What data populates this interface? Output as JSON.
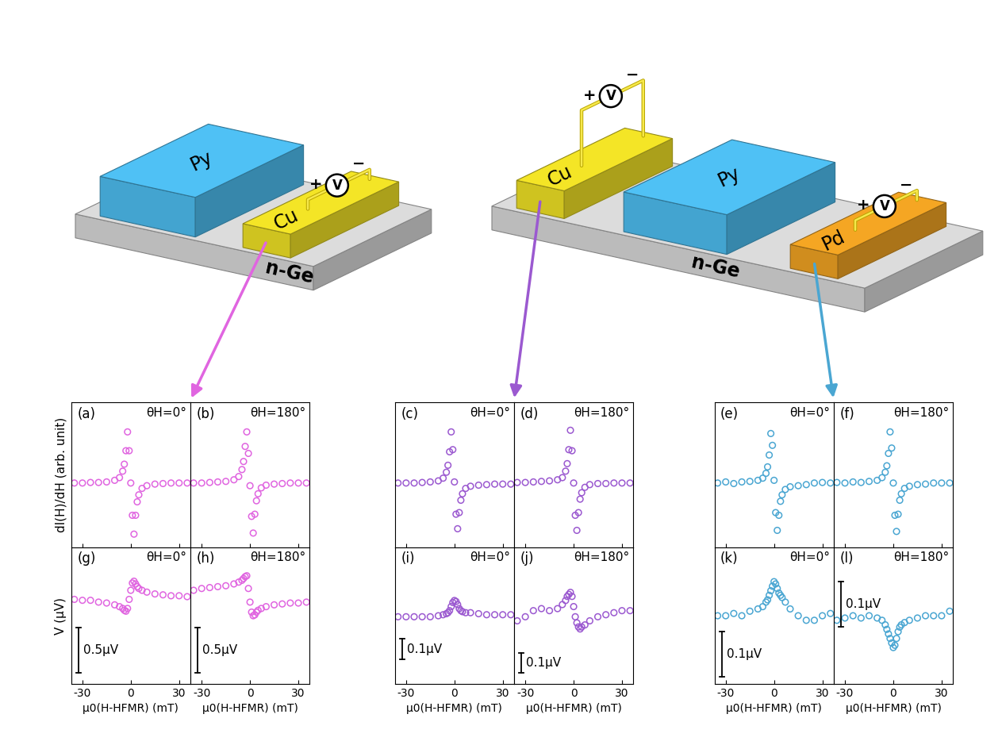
{
  "diagram": {
    "devices": [
      {
        "substrate": {
          "name": "n-Ge",
          "color": "#dcdcdc"
        },
        "layers": [
          {
            "name": "Py",
            "color": "#4fc1f5"
          },
          {
            "name": "Cu",
            "color": "#f4e526",
            "voltmeter": {
              "symbol": "V",
              "plus": "+",
              "minus": "−"
            }
          }
        ]
      },
      {
        "substrate": {
          "name": "n-Ge",
          "color": "#dcdcdc"
        },
        "layers": [
          {
            "name": "Cu",
            "color": "#f4e526",
            "voltmeter": {
              "symbol": "V",
              "plus": "+",
              "minus": "−"
            }
          },
          {
            "name": "Py",
            "color": "#4fc1f5"
          },
          {
            "name": "Pd",
            "color": "#f5a623",
            "voltmeter": {
              "symbol": "V",
              "plus": "+",
              "minus": "−"
            }
          }
        ]
      }
    ]
  },
  "chart_data": [
    {
      "type": "scatter",
      "label": "(a)",
      "annotation": "θH=0°",
      "color": "#e065e0",
      "marker": "o",
      "ylabel": "dI(H)/dH (arb. unit)",
      "tick_labels": false,
      "x": [
        -35,
        -30,
        -25,
        -20,
        -15,
        -10,
        -7,
        -5,
        -4,
        -3,
        -2,
        -1,
        0,
        1,
        2,
        3,
        4,
        5,
        7,
        10,
        15,
        20,
        25,
        30,
        35
      ],
      "values": [
        0,
        0,
        0.01,
        0.01,
        0.02,
        0.05,
        0.1,
        0.22,
        0.35,
        0.6,
        0.95,
        0.6,
        0.0,
        -0.6,
        -0.95,
        -0.6,
        -0.35,
        -0.22,
        -0.1,
        -0.05,
        -0.02,
        -0.01,
        0,
        0,
        0
      ],
      "xlim": [
        -37,
        37
      ],
      "xticks": [
        -30,
        0,
        30
      ],
      "ylim": [
        -1.2,
        1.5
      ]
    },
    {
      "type": "scatter",
      "label": "(b)",
      "annotation": "θH=180°",
      "color": "#e065e0",
      "marker": "o",
      "tick_labels": false,
      "x": [
        -35,
        -30,
        -25,
        -20,
        -15,
        -10,
        -7,
        -5,
        -4,
        -3,
        -2,
        -1,
        0,
        1,
        2,
        3,
        4,
        5,
        7,
        10,
        15,
        20,
        25,
        30,
        35
      ],
      "values": [
        0,
        0,
        0.01,
        0.02,
        0.03,
        0.06,
        0.12,
        0.25,
        0.4,
        0.68,
        0.95,
        0.55,
        -0.05,
        -0.62,
        -0.93,
        -0.58,
        -0.33,
        -0.2,
        -0.09,
        -0.04,
        -0.02,
        -0.01,
        0,
        0,
        0
      ],
      "xlim": [
        -37,
        37
      ],
      "xticks": [
        -30,
        0,
        30
      ],
      "ylim": [
        -1.2,
        1.5
      ]
    },
    {
      "type": "scatter",
      "label": "(c)",
      "annotation": "θH=0°",
      "color": "#9b59d0",
      "marker": "o",
      "tick_labels": false,
      "x": [
        -35,
        -30,
        -25,
        -20,
        -15,
        -10,
        -7,
        -5,
        -4,
        -3,
        -2,
        -1,
        0,
        1,
        2,
        3,
        4,
        5,
        7,
        10,
        15,
        20,
        25,
        30,
        35
      ],
      "values": [
        0,
        0,
        0,
        0.01,
        0.02,
        0.04,
        0.09,
        0.2,
        0.33,
        0.58,
        0.95,
        0.62,
        0.02,
        -0.58,
        -0.85,
        -0.55,
        -0.32,
        -0.2,
        -0.1,
        -0.06,
        -0.04,
        -0.03,
        -0.02,
        -0.02,
        -0.02
      ],
      "xlim": [
        -37,
        37
      ],
      "xticks": [
        -30,
        0,
        30
      ],
      "ylim": [
        -1.2,
        1.5
      ]
    },
    {
      "type": "scatter",
      "label": "(d)",
      "annotation": "θH=180°",
      "color": "#9b59d0",
      "marker": "o",
      "tick_labels": false,
      "x": [
        -35,
        -30,
        -25,
        -20,
        -15,
        -10,
        -7,
        -5,
        -4,
        -3,
        -2,
        -1,
        0,
        1,
        2,
        3,
        4,
        5,
        7,
        10,
        15,
        20,
        25,
        30,
        35
      ],
      "values": [
        0.01,
        0.01,
        0.02,
        0.03,
        0.04,
        0.06,
        0.1,
        0.22,
        0.36,
        0.62,
        0.98,
        0.6,
        0.0,
        -0.6,
        -0.88,
        -0.55,
        -0.3,
        -0.18,
        -0.08,
        -0.03,
        -0.01,
        -0.01,
        0,
        0,
        0
      ],
      "xlim": [
        -37,
        37
      ],
      "xticks": [
        -30,
        0,
        30
      ],
      "ylim": [
        -1.2,
        1.5
      ]
    },
    {
      "type": "scatter",
      "label": "(e)",
      "annotation": "θH=0°",
      "color": "#4aa6d2",
      "marker": "o",
      "tick_labels": false,
      "x": [
        -35,
        -30,
        -25,
        -20,
        -15,
        -10,
        -7,
        -5,
        -4,
        -3,
        -2,
        -1,
        0,
        1,
        2,
        3,
        4,
        5,
        7,
        10,
        15,
        20,
        25,
        30,
        35
      ],
      "values": [
        0,
        0.02,
        -0.01,
        0.02,
        0.03,
        0.05,
        0.09,
        0.18,
        0.3,
        0.52,
        0.92,
        0.7,
        0.05,
        -0.55,
        -0.88,
        -0.6,
        -0.34,
        -0.22,
        -0.12,
        -0.07,
        -0.05,
        -0.03,
        0,
        0.01,
        0
      ],
      "xlim": [
        -37,
        37
      ],
      "xticks": [
        -30,
        0,
        30
      ],
      "ylim": [
        -1.2,
        1.5
      ]
    },
    {
      "type": "scatter",
      "label": "(f)",
      "annotation": "θH=180°",
      "color": "#4aa6d2",
      "marker": "o",
      "tick_labels": false,
      "x": [
        -35,
        -30,
        -25,
        -20,
        -15,
        -10,
        -7,
        -5,
        -4,
        -3,
        -2,
        -1,
        0,
        1,
        2,
        3,
        4,
        5,
        7,
        10,
        15,
        20,
        25,
        30,
        35
      ],
      "values": [
        0.01,
        0,
        0.02,
        0.01,
        0.03,
        0.05,
        0.1,
        0.2,
        0.32,
        0.55,
        0.95,
        0.65,
        0.0,
        -0.6,
        -0.9,
        -0.58,
        -0.32,
        -0.2,
        -0.1,
        -0.06,
        -0.03,
        -0.02,
        0,
        0,
        0
      ],
      "xlim": [
        -37,
        37
      ],
      "xticks": [
        -30,
        0,
        30
      ],
      "ylim": [
        -1.2,
        1.5
      ]
    },
    {
      "type": "scatter",
      "label": "(g)",
      "annotation": "θH=0°",
      "color": "#e065e0",
      "marker": "o",
      "ylabel": "V (μV)",
      "xlabel": "μ0(H-HFMR) (mT)",
      "tick_labels": "x",
      "scale_bar": {
        "value": 0.5,
        "label": "0.5μV"
      },
      "x": [
        -35,
        -30,
        -25,
        -20,
        -15,
        -10,
        -7,
        -5,
        -4,
        -3,
        -2,
        -1,
        0,
        1,
        2,
        3,
        4,
        5,
        7,
        10,
        15,
        20,
        25,
        30,
        35
      ],
      "values": [
        -0.02,
        -0.03,
        -0.03,
        -0.05,
        -0.06,
        -0.08,
        -0.1,
        -0.12,
        -0.14,
        -0.15,
        -0.12,
        -0.02,
        0.08,
        0.16,
        0.18,
        0.15,
        0.12,
        0.1,
        0.08,
        0.06,
        0.04,
        0.03,
        0.02,
        0.02,
        0.01
      ],
      "xlim": [
        -37,
        37
      ],
      "xticks": [
        -30,
        0,
        30
      ],
      "ylim": [
        -0.95,
        0.55
      ]
    },
    {
      "type": "scatter",
      "label": "(h)",
      "annotation": "θH=180°",
      "color": "#e065e0",
      "marker": "o",
      "xlabel": "μ0(H-HFMR) (mT)",
      "tick_labels": "x",
      "scale_bar": {
        "value": 0.5,
        "label": "0.5μV"
      },
      "x": [
        -35,
        -30,
        -25,
        -20,
        -15,
        -10,
        -7,
        -5,
        -4,
        -3,
        -2,
        -1,
        0,
        1,
        2,
        3,
        4,
        5,
        7,
        10,
        15,
        20,
        25,
        30,
        35
      ],
      "values": [
        0.08,
        0.1,
        0.11,
        0.12,
        0.13,
        0.15,
        0.17,
        0.19,
        0.21,
        0.23,
        0.24,
        0.1,
        -0.05,
        -0.16,
        -0.2,
        -0.19,
        -0.16,
        -0.14,
        -0.12,
        -0.1,
        -0.08,
        -0.07,
        -0.06,
        -0.06,
        -0.05
      ],
      "xlim": [
        -37,
        37
      ],
      "xticks": [
        -30,
        0,
        30
      ],
      "ylim": [
        -0.95,
        0.55
      ]
    },
    {
      "type": "scatter",
      "label": "(i)",
      "annotation": "θH=0°",
      "color": "#9b59d0",
      "marker": "o",
      "xlabel": "μ0(H-HFMR) (mT)",
      "tick_labels": "x",
      "scale_bar": {
        "value": 0.1,
        "label": "0.1μV"
      },
      "x": [
        -35,
        -30,
        -25,
        -20,
        -15,
        -10,
        -7,
        -5,
        -4,
        -3,
        -2,
        -1,
        0,
        1,
        2,
        3,
        4,
        5,
        7,
        10,
        15,
        20,
        25,
        30,
        35
      ],
      "values": [
        0,
        0,
        0,
        0,
        0,
        0.005,
        0.01,
        0.015,
        0.02,
        0.03,
        0.05,
        0.07,
        0.08,
        0.075,
        0.06,
        0.04,
        0.03,
        0.025,
        0.02,
        0.02,
        0.015,
        0.01,
        0.01,
        0.01,
        0.01
      ],
      "xlim": [
        -37,
        37
      ],
      "xticks": [
        -30,
        0,
        30
      ],
      "ylim": [
        -0.33,
        0.34
      ]
    },
    {
      "type": "scatter",
      "label": "(j)",
      "annotation": "θH=180°",
      "color": "#9b59d0",
      "marker": "o",
      "xlabel": "μ0(H-HFMR) (mT)",
      "tick_labels": "x",
      "scale_bar": {
        "value": 0.1,
        "label": "0.1μV"
      },
      "x": [
        -35,
        -30,
        -25,
        -20,
        -15,
        -10,
        -7,
        -5,
        -4,
        -3,
        -2,
        -1,
        0,
        1,
        2,
        3,
        4,
        5,
        7,
        10,
        15,
        20,
        25,
        30,
        35
      ],
      "values": [
        -0.02,
        0.0,
        0.03,
        0.04,
        0.03,
        0.04,
        0.06,
        0.08,
        0.1,
        0.11,
        0.12,
        0.1,
        0.05,
        0.0,
        -0.03,
        -0.05,
        -0.06,
        -0.05,
        -0.04,
        -0.02,
        0.0,
        0.01,
        0.02,
        0.03,
        0.03
      ],
      "xlim": [
        -37,
        37
      ],
      "xticks": [
        -30,
        0,
        30
      ],
      "ylim": [
        -0.33,
        0.34
      ]
    },
    {
      "type": "scatter",
      "label": "(k)",
      "annotation": "θH=0°",
      "color": "#4aa6d2",
      "marker": "o",
      "xlabel": "μ0(H-HFMR) (mT)",
      "tick_labels": "x",
      "scale_bar": {
        "value": 0.1,
        "label": "0.1μV"
      },
      "x": [
        -35,
        -30,
        -25,
        -20,
        -15,
        -10,
        -7,
        -5,
        -4,
        -3,
        -2,
        -1,
        0,
        1,
        2,
        3,
        4,
        5,
        7,
        10,
        15,
        20,
        25,
        30,
        35
      ],
      "values": [
        0.0,
        0.0,
        0.005,
        0.0,
        0.01,
        0.015,
        0.02,
        0.03,
        0.035,
        0.045,
        0.055,
        0.065,
        0.075,
        0.07,
        0.06,
        0.05,
        0.045,
        0.04,
        0.03,
        0.015,
        0.0,
        -0.01,
        -0.01,
        0.0,
        0.005
      ],
      "xlim": [
        -37,
        37
      ],
      "xticks": [
        -30,
        0,
        30
      ],
      "ylim": [
        -0.15,
        0.15
      ]
    },
    {
      "type": "scatter",
      "label": "(l)",
      "annotation": "θH=180°",
      "color": "#4aa6d2",
      "marker": "o",
      "xlabel": "μ0(H-HFMR) (mT)",
      "tick_labels": "x",
      "scale_bar": {
        "value": 0.1,
        "label": "0.1μV"
      },
      "x": [
        -35,
        -30,
        -25,
        -20,
        -15,
        -10,
        -7,
        -5,
        -4,
        -3,
        -2,
        -1,
        0,
        1,
        2,
        3,
        4,
        5,
        7,
        10,
        15,
        20,
        25,
        30,
        35
      ],
      "values": [
        -0.01,
        -0.005,
        0.0,
        -0.005,
        0.0,
        -0.005,
        -0.01,
        -0.02,
        -0.03,
        -0.04,
        -0.05,
        -0.06,
        -0.07,
        -0.065,
        -0.05,
        -0.035,
        -0.025,
        -0.02,
        -0.015,
        -0.01,
        -0.005,
        0.0,
        0.0,
        0.0,
        0.01
      ],
      "xlim": [
        -37,
        37
      ],
      "xticks": [
        -30,
        0,
        30
      ],
      "ylim": [
        -0.15,
        0.15
      ]
    }
  ]
}
